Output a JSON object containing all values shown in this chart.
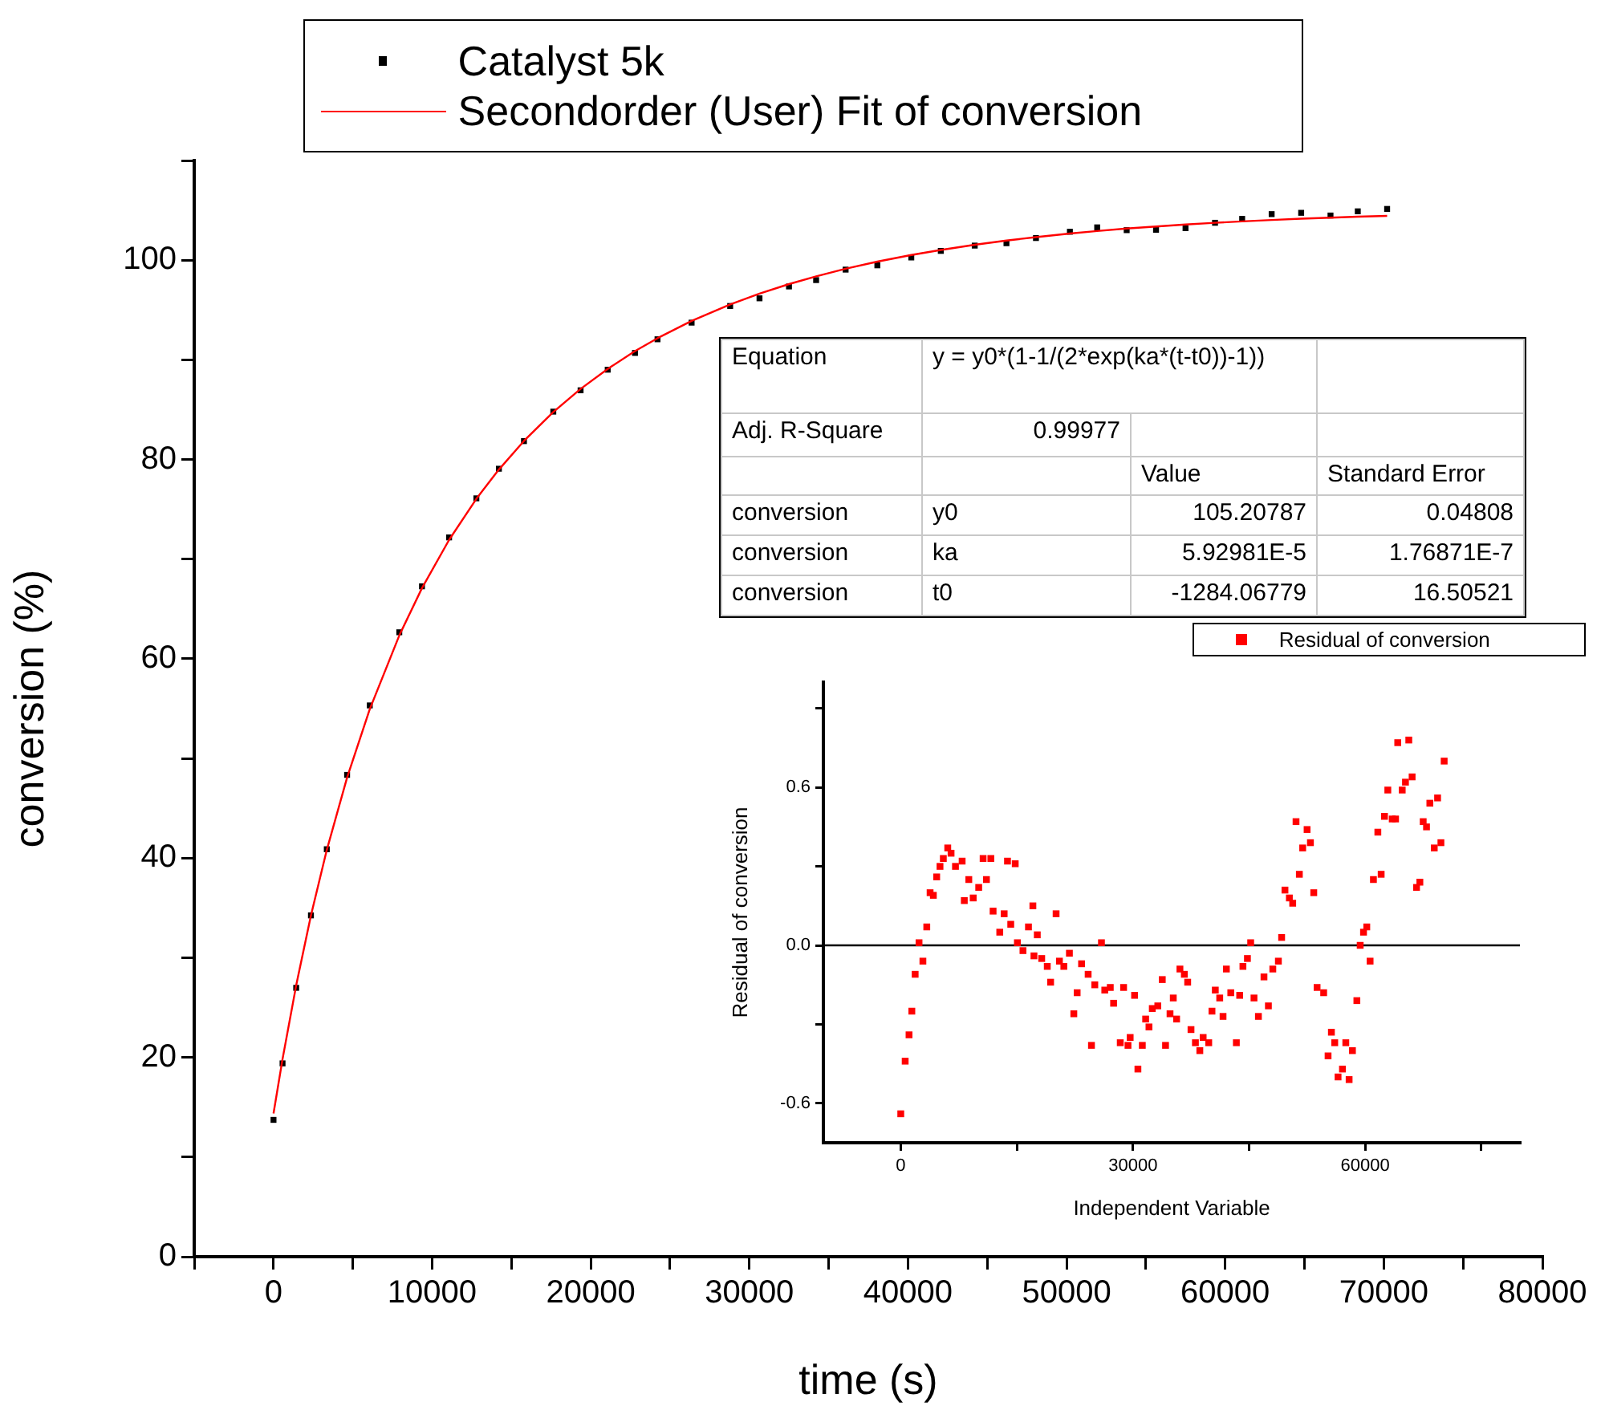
{
  "chart_data": [
    {
      "type": "scatter",
      "xlabel": "time (s)",
      "ylabel": "conversion (%)",
      "xlim": [
        -5000,
        80000
      ],
      "ylim": [
        0,
        110
      ],
      "xticks": [
        {
          "value": -5000,
          "label": null
        },
        0,
        {
          "value": 5000,
          "label": null
        },
        10000,
        {
          "value": 15000,
          "label": null
        },
        20000,
        {
          "value": 25000,
          "label": null
        },
        30000,
        {
          "value": 35000,
          "label": null
        },
        40000,
        {
          "value": 45000,
          "label": null
        },
        50000,
        {
          "value": 55000,
          "label": null
        },
        60000,
        {
          "value": 65000,
          "label": null
        },
        70000,
        {
          "value": 75000,
          "label": null
        },
        80000
      ],
      "yticks": [
        0,
        {
          "value": 10,
          "label": null
        },
        20,
        {
          "value": 30,
          "label": null
        },
        40,
        {
          "value": 50,
          "label": null
        },
        60,
        {
          "value": 70,
          "label": null
        },
        80,
        {
          "value": 90,
          "label": null
        },
        100,
        {
          "value": 110,
          "label": null
        }
      ],
      "legend": "top",
      "marker": "square",
      "series": [
        {
          "name": "Catalyst 5k",
          "type": "scatter",
          "color": "#000000",
          "x": [
            0,
            570,
            1430,
            2360,
            3360,
            4640,
            6070,
            7930,
            9360,
            11070,
            12790,
            14210,
            15790,
            17640,
            19360,
            21070,
            22790,
            24210,
            26360,
            28790,
            30640,
            32500,
            34210,
            36070,
            38070,
            40210,
            42070,
            44210,
            46210,
            48070,
            50210,
            51930,
            53790,
            55640,
            57500,
            59360,
            61070,
            62930,
            64790,
            66640,
            68360,
            70210
          ],
          "values": [
            13.73,
            19.4,
            26.98,
            34.25,
            40.89,
            48.35,
            55.32,
            62.66,
            67.27,
            72.18,
            76.1,
            79.07,
            81.84,
            84.8,
            86.94,
            89.01,
            90.69,
            92.06,
            93.73,
            95.4,
            96.17,
            97.36,
            98.0,
            99.05,
            99.48,
            100.27,
            100.93,
            101.46,
            101.7,
            102.22,
            102.85,
            103.29,
            103.01,
            103.05,
            103.21,
            103.75,
            104.14,
            104.62,
            104.75,
            104.48,
            104.9,
            105.14
          ]
        },
        {
          "name": "Secondorder (User) Fit of conversion",
          "type": "line",
          "marker": "none",
          "color": "#ff0000",
          "x": [
            0,
            570,
            1430,
            2360,
            3360,
            4640,
            6070,
            7930,
            9360,
            11070,
            12790,
            14210,
            15790,
            17640,
            19360,
            21070,
            22790,
            24210,
            26360,
            28790,
            30640,
            32500,
            34210,
            36070,
            38070,
            40210,
            42070,
            44210,
            46210,
            48070,
            50210,
            51930,
            53790,
            55640,
            57500,
            59360,
            61070,
            62930,
            64790,
            66640,
            68360,
            70210
          ],
          "values": [
            14.37,
            19.84,
            27.23,
            34.24,
            40.82,
            48.09,
            54.95,
            62.34,
            67.09,
            71.93,
            76.05,
            78.99,
            81.86,
            84.76,
            87.08,
            89.09,
            90.87,
            92.17,
            93.9,
            95.56,
            96.64,
            97.6,
            98.38,
            99.14,
            99.85,
            100.52,
            101.02,
            101.54,
            101.97,
            102.31,
            102.67,
            102.92,
            103.17,
            103.38,
            103.58,
            103.75,
            103.89,
            104.03,
            104.16,
            104.26,
            104.36,
            104.44
          ]
        }
      ]
    },
    {
      "type": "other",
      "annotations": [
        "Equation",
        "y = y0*(1-1/(2*exp(ka*(t-t0))-1))",
        "Adj. R-Square",
        "0.99977",
        "Value",
        "Standard Error",
        "conversion",
        "y0",
        "105.20787",
        "0.04808",
        "conversion",
        "ka",
        "5.92981E-5",
        "1.76871E-7",
        "conversion",
        "t0",
        "-1284.06779",
        "16.50521"
      ]
    },
    {
      "type": "scatter",
      "xlabel": "Independent Variable",
      "ylabel": "Residual of conversion",
      "xlim": [
        -10000,
        80000
      ],
      "ylim": [
        -0.75,
        1.0
      ],
      "xticks": [
        0,
        {
          "value": 15000,
          "label": null
        },
        30000,
        {
          "value": 45000,
          "label": null
        },
        60000,
        {
          "value": 75000,
          "label": null
        }
      ],
      "yticks": [
        -0.6,
        {
          "value": -0.3,
          "label": null
        },
        {
          "value": 0,
          "label": "0.0"
        },
        {
          "value": 0.3,
          "label": null
        },
        0.6,
        {
          "value": 0.9,
          "label": null
        }
      ],
      "legend": "top right",
      "marker": "square",
      "ref_lines": [
        {
          "axis": "y",
          "value": 0,
          "color": "#000000"
        }
      ],
      "series": [
        {
          "name": "Residual of conversion",
          "type": "scatter",
          "color": "#ff0000",
          "x": [
            0,
            570,
            1070,
            1430,
            1860,
            2360,
            2860,
            3360,
            3790,
            4210,
            4640,
            5070,
            5500,
            6070,
            6500,
            7070,
            7930,
            8210,
            8790,
            9360,
            10070,
            10640,
            11070,
            11640,
            11930,
            12790,
            13360,
            13790,
            14790,
            14210,
            15070,
            15790,
            16500,
            17070,
            17640,
            17210,
            18210,
            18930,
            19360,
            20070,
            20500,
            21070,
            21790,
            22360,
            22790,
            23360,
            24210,
            24640,
            25070,
            25930,
            26360,
            27070,
            27500,
            28360,
            28790,
            29360,
            29640,
            30210,
            30640,
            31210,
            31640,
            32070,
            32500,
            33210,
            33790,
            34210,
            34790,
            35210,
            35640,
            36070,
            36640,
            37070,
            37500,
            38070,
            38640,
            39070,
            39790,
            40210,
            40640,
            41210,
            41640,
            42070,
            42640,
            43360,
            43790,
            44210,
            44790,
            45210,
            45640,
            46210,
            46930,
            47500,
            48070,
            48790,
            49210,
            49640,
            50210,
            50640,
            51070,
            51500,
            51930,
            52500,
            52930,
            53360,
            53790,
            54640,
            55210,
            55640,
            56070,
            56500,
            57070,
            57500,
            57930,
            58360,
            58930,
            59360,
            59790,
            60210,
            60640,
            61070,
            61640,
            62070,
            62500,
            62930,
            63500,
            63930,
            64210,
            64790,
            65210,
            65640,
            66070,
            66640,
            67070,
            67500,
            67930,
            68360,
            68930,
            69360,
            69790,
            70210
          ],
          "values": [
            -0.64,
            -0.44,
            -0.34,
            -0.25,
            -0.11,
            0.01,
            -0.06,
            0.07,
            0.2,
            0.19,
            0.26,
            0.3,
            0.33,
            0.37,
            0.35,
            0.3,
            0.32,
            0.17,
            0.25,
            0.18,
            0.22,
            0.33,
            0.25,
            0.33,
            0.13,
            0.05,
            0.12,
            0.32,
            0.31,
            0.08,
            0.01,
            -0.02,
            0.07,
            0.15,
            0.04,
            -0.04,
            -0.05,
            -0.08,
            -0.14,
            0.12,
            -0.06,
            -0.08,
            -0.03,
            -0.26,
            -0.18,
            -0.07,
            -0.11,
            -0.38,
            -0.15,
            0.01,
            -0.17,
            -0.16,
            -0.22,
            -0.37,
            -0.16,
            -0.38,
            -0.35,
            -0.19,
            -0.47,
            -0.38,
            -0.28,
            -0.31,
            -0.24,
            -0.23,
            -0.13,
            -0.38,
            -0.26,
            -0.2,
            -0.28,
            -0.09,
            -0.11,
            -0.14,
            -0.32,
            -0.37,
            -0.4,
            -0.35,
            -0.37,
            -0.25,
            -0.17,
            -0.2,
            -0.27,
            -0.09,
            -0.18,
            -0.37,
            -0.19,
            -0.08,
            -0.05,
            0.01,
            -0.2,
            -0.27,
            -0.12,
            -0.23,
            -0.09,
            -0.06,
            0.03,
            0.21,
            0.18,
            0.16,
            0.47,
            0.27,
            0.37,
            0.44,
            0.39,
            0.2,
            -0.16,
            -0.18,
            -0.42,
            -0.33,
            -0.37,
            -0.5,
            -0.47,
            -0.37,
            -0.51,
            -0.4,
            -0.21,
            0.0,
            0.05,
            0.07,
            -0.06,
            0.25,
            0.43,
            0.27,
            0.49,
            0.59,
            0.48,
            0.48,
            0.77,
            0.59,
            0.62,
            0.78,
            0.64,
            0.22,
            0.24,
            0.47,
            0.45,
            0.54,
            0.37,
            0.56,
            0.39,
            0.7
          ]
        }
      ]
    }
  ]
}
